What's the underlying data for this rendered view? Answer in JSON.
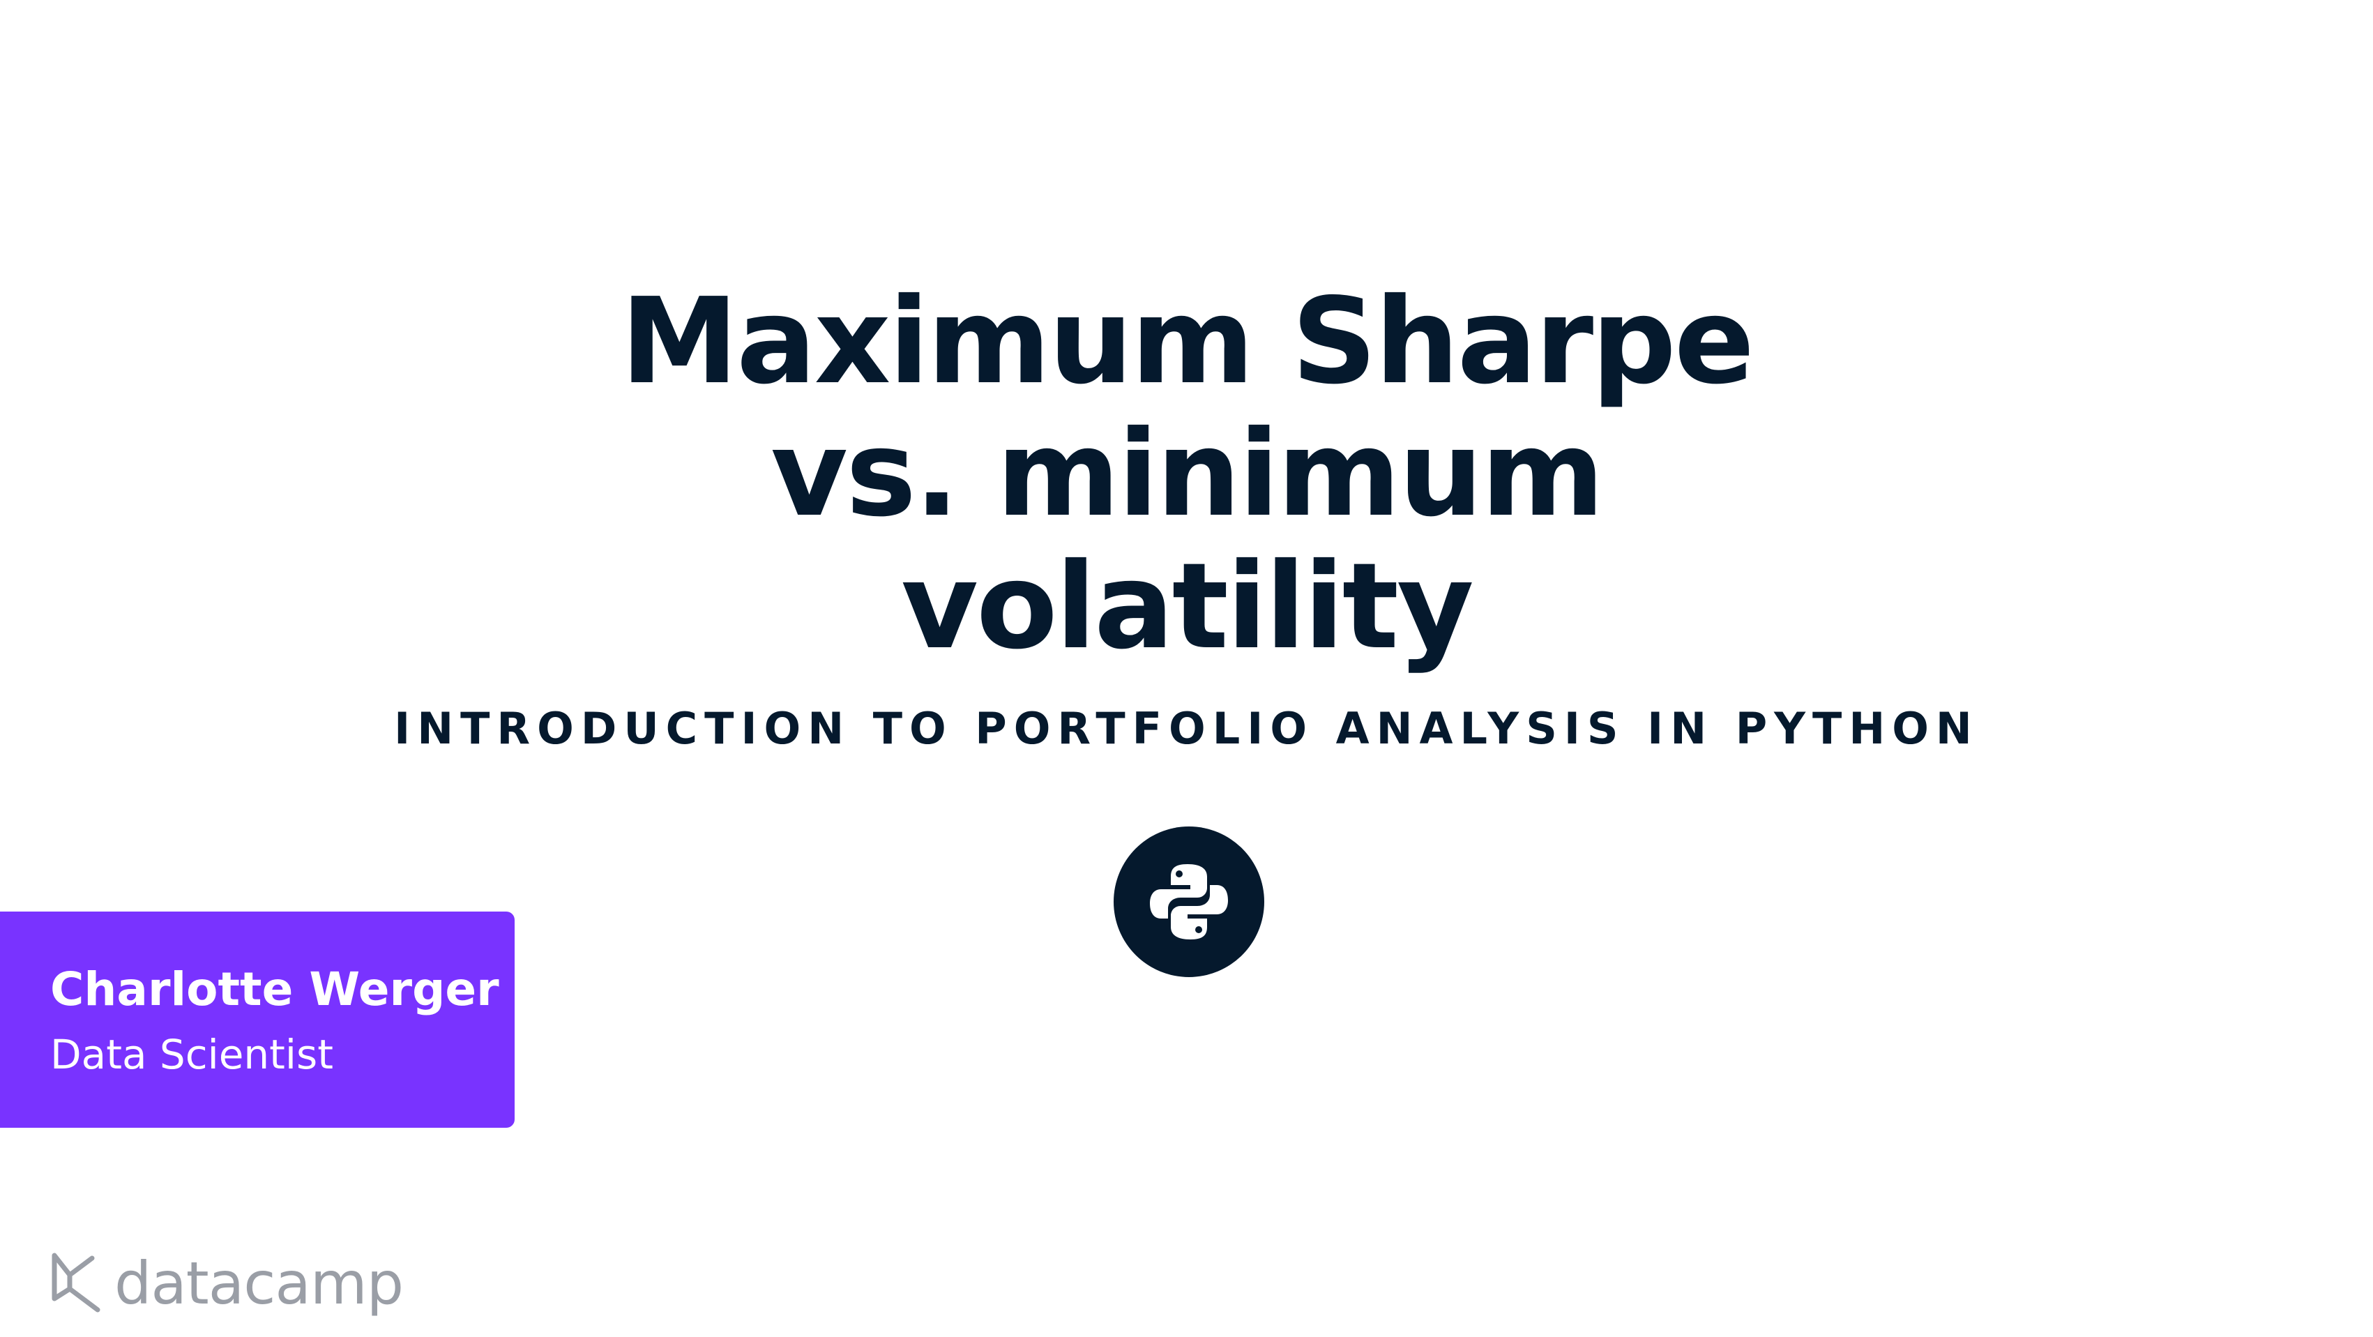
{
  "title": {
    "lines": [
      "Maximum Sharpe",
      "vs. minimum",
      "volatility"
    ]
  },
  "course": {
    "name": "INTRODUCTION TO PORTFOLIO ANALYSIS IN PYTHON"
  },
  "author": {
    "name": "Charlotte Werger",
    "role": "Data Scientist"
  },
  "brand": {
    "logo_text": "datacamp",
    "logo_icon": "datacamp-logo-icon",
    "language_icon": "python-icon",
    "colors": {
      "text": "#05192d",
      "accent": "#7933ff",
      "logo": "#9a9ea6",
      "background": "#ffffff"
    }
  }
}
